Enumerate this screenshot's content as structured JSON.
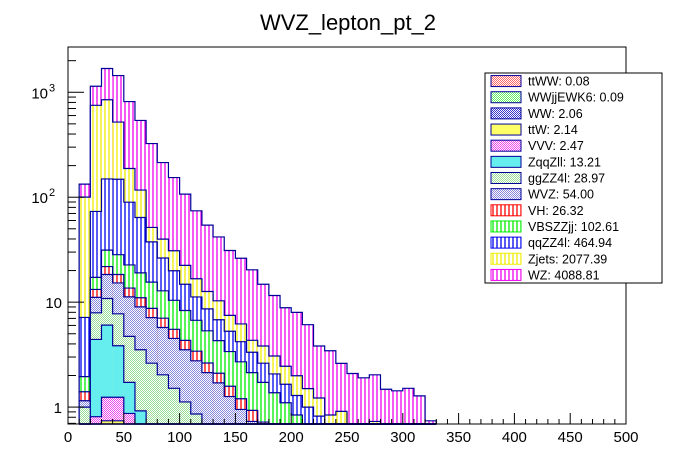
{
  "chart_data": {
    "type": "bar",
    "stacked": true,
    "histogram": true,
    "title": "WVZ_lepton_pt_2",
    "xlabel": "",
    "ylabel": "",
    "xlim": [
      0,
      500
    ],
    "ylim": [
      0.69,
      2700
    ],
    "yscale": "log",
    "bin_width": 10,
    "x_ticks": [
      0,
      50,
      100,
      150,
      200,
      250,
      300,
      350,
      400,
      450,
      500
    ],
    "x_tick_labels": [
      "0",
      "50",
      "100",
      "150",
      "200",
      "250",
      "300",
      "350",
      "400",
      "450",
      "500"
    ],
    "y_ticks": [
      1,
      10,
      100,
      1000
    ],
    "y_tick_labels": [
      "1",
      "10",
      "10^2",
      "10^3"
    ],
    "legend_position": "top-right",
    "bin_low_edges": [
      10,
      20,
      30,
      40,
      50,
      60,
      70,
      80,
      90,
      100,
      110,
      120,
      130,
      140,
      150,
      160,
      170,
      180,
      190,
      200,
      210,
      220,
      230,
      240,
      250,
      260,
      270,
      280,
      290,
      300,
      310,
      320
    ],
    "series": [
      {
        "name": "ttWW",
        "legend": "ttWW: 0.08",
        "fill": "#ff6666",
        "edge": "#ff0000",
        "pattern": "crosshatch",
        "values": [
          0,
          0,
          0.02,
          0.02,
          0.01,
          0.01,
          0.01,
          0,
          0,
          0,
          0,
          0,
          0,
          0,
          0,
          0,
          0,
          0,
          0,
          0,
          0,
          0,
          0,
          0,
          0,
          0,
          0,
          0,
          0,
          0,
          0,
          0
        ]
      },
      {
        "name": "WWjjEWK6",
        "legend": "WWjjEWK6: 0.09",
        "fill": "#66ee66",
        "edge": "#00cc00",
        "pattern": "crosshatch",
        "values": [
          0,
          0.01,
          0.02,
          0.02,
          0.01,
          0.01,
          0.01,
          0.01,
          0,
          0,
          0,
          0,
          0,
          0,
          0,
          0,
          0,
          0,
          0,
          0,
          0,
          0,
          0,
          0,
          0,
          0,
          0,
          0,
          0,
          0,
          0,
          0
        ]
      },
      {
        "name": "WW",
        "legend": "WW: 2.06",
        "fill": "#3333cc",
        "edge": "#0000aa",
        "pattern": "crosshatch",
        "values": [
          0.05,
          0.2,
          0.3,
          0.3,
          0.25,
          0.2,
          0.15,
          0.12,
          0.1,
          0.08,
          0.06,
          0.05,
          0.04,
          0.03,
          0.02,
          0.02,
          0.01,
          0.01,
          0.01,
          0.01,
          0,
          0,
          0,
          0,
          0,
          0,
          0,
          0,
          0,
          0,
          0,
          0
        ]
      },
      {
        "name": "ttW",
        "legend": "ttW: 2.14",
        "fill": "#ffff66",
        "edge": "#dddd00",
        "pattern": "solid",
        "values": [
          0.05,
          0.2,
          0.4,
          0.4,
          0.3,
          0.2,
          0.15,
          0.1,
          0.08,
          0.06,
          0.05,
          0.04,
          0.03,
          0.02,
          0.02,
          0.01,
          0.01,
          0.01,
          0,
          0,
          0,
          0,
          0,
          0,
          0,
          0,
          0,
          0,
          0,
          0,
          0,
          0
        ]
      },
      {
        "name": "VVV",
        "legend": "VVV: 2.47",
        "fill": "#ee44ee",
        "edge": "#cc00cc",
        "pattern": "crosshatch",
        "values": [
          0.1,
          0.4,
          0.5,
          0.5,
          0.3,
          0.2,
          0.15,
          0.1,
          0.08,
          0.05,
          0.03,
          0.02,
          0.02,
          0.01,
          0.01,
          0,
          0,
          0,
          0,
          0,
          0,
          0,
          0,
          0,
          0,
          0,
          0,
          0,
          0,
          0,
          0,
          0
        ]
      },
      {
        "name": "ZqqZll",
        "legend": "ZqqZll: 13.21",
        "fill": "#66eeee",
        "edge": "#00cccc",
        "pattern": "solid",
        "values": [
          0.3,
          3.6,
          4.8,
          2.6,
          0.85,
          0.3,
          0.15,
          0.1,
          0.05,
          0.03,
          0.02,
          0.02,
          0.01,
          0,
          0,
          0,
          0,
          0,
          0,
          0,
          0,
          0,
          0,
          0,
          0,
          0,
          0,
          0,
          0,
          0,
          0,
          0
        ]
      },
      {
        "name": "ggZZ4l",
        "legend": "ggZZ4l: 28.97",
        "fill": "#99dd99",
        "edge": "#339933",
        "pattern": "crosshatch",
        "values": [
          0.5,
          3.5,
          4.8,
          3.9,
          3.0,
          2.6,
          2.0,
          1.6,
          1.2,
          0.9,
          0.7,
          0.5,
          0.4,
          0.3,
          0.2,
          0.15,
          0.1,
          0.08,
          0.06,
          0.05,
          0.04,
          0.03,
          0.02,
          0.02,
          0.01,
          0.01,
          0,
          0,
          0,
          0,
          0,
          0
        ]
      },
      {
        "name": "WVZ",
        "legend": "WVZ: 54.00",
        "fill": "#8888dd",
        "edge": "#000099",
        "pattern": "crosshatch",
        "values": [
          0.15,
          3.2,
          7.5,
          7.5,
          6.5,
          5.5,
          4.5,
          3.7,
          3.0,
          2.4,
          1.9,
          1.5,
          1.2,
          0.9,
          0.7,
          0.55,
          0.45,
          0.35,
          0.28,
          0.2,
          0.15,
          0.12,
          0.1,
          0.08,
          0.06,
          0.05,
          0.04,
          0.03,
          0.02,
          0.02,
          0.01,
          0
        ]
      },
      {
        "name": "VH",
        "legend": "VH: 26.32",
        "fill": "#ffffff",
        "edge": "#ff0000",
        "pattern": "vlines",
        "values": [
          0.25,
          2.1,
          3.5,
          3.1,
          2.4,
          2.0,
          1.6,
          1.3,
          1.0,
          0.8,
          0.65,
          0.5,
          0.4,
          0.32,
          0.25,
          0.2,
          0.15,
          0.12,
          0.1,
          0.08,
          0.06,
          0.05,
          0.04,
          0.03,
          0.02,
          0.02,
          0.01,
          0.01,
          0,
          0,
          0,
          0
        ]
      },
      {
        "name": "VBSZZjj",
        "legend": "VBSZZjj: 102.61",
        "fill": "#ffffff",
        "edge": "#00ee00",
        "pattern": "vlines",
        "values": [
          0.55,
          4.0,
          9.5,
          10.0,
          9.0,
          8.0,
          6.8,
          5.8,
          4.9,
          4.0,
          3.3,
          2.7,
          2.2,
          1.8,
          1.5,
          1.2,
          1.0,
          0.8,
          0.65,
          0.5,
          0.4,
          0.32,
          0.26,
          0.2,
          0.16,
          0.12,
          0.1,
          0.08,
          0.06,
          0.05,
          0.04,
          0.02
        ]
      },
      {
        "name": "qqZZ4l",
        "legend": "qqZZ4l: 464.94",
        "fill": "#ffffff",
        "edge": "#0000ee",
        "pattern": "vlines",
        "values": [
          5.2,
          56,
          118,
          120,
          67,
          45,
          22,
          13.5,
          9.5,
          6.5,
          4.5,
          3.3,
          2.5,
          1.9,
          1.5,
          1.2,
          0.9,
          0.7,
          0.55,
          0.45,
          0.35,
          0.3,
          0.22,
          0.18,
          0.14,
          0.1,
          0.08,
          0.06,
          0.05,
          0.04,
          0.03,
          0.02
        ]
      },
      {
        "name": "Zjets",
        "legend": "Zjets: 2077.39",
        "fill": "#ffffff",
        "edge": "#eeee00",
        "pattern": "vlines",
        "values": [
          93,
          678,
          699,
          372,
          98,
          53,
          14,
          13.5,
          11,
          7.6,
          5.5,
          4.0,
          3.5,
          2.2,
          2.0,
          1.0,
          1.2,
          1.0,
          0.8,
          0.7,
          0.5,
          0.4,
          0.2,
          0.4,
          0.2,
          0.3,
          0.5,
          0.2,
          0.2,
          0.2,
          0.3,
          0.1
        ]
      },
      {
        "name": "WZ",
        "legend": "WZ: 4088.81",
        "fill": "#ffffff",
        "edge": "#ee00ee",
        "pattern": "vlines",
        "values": [
          33,
          389,
          836,
          922,
          628,
          422,
          273,
          174,
          123,
          84.5,
          57.5,
          41.6,
          31.5,
          23.6,
          20.0,
          16.0,
          11.0,
          8.5,
          6.4,
          6.0,
          4.6,
          2.6,
          2.6,
          1.7,
          1.5,
          1.3,
          1.3,
          1.1,
          1.1,
          1.2,
          0.9,
          0.6
        ]
      }
    ]
  }
}
